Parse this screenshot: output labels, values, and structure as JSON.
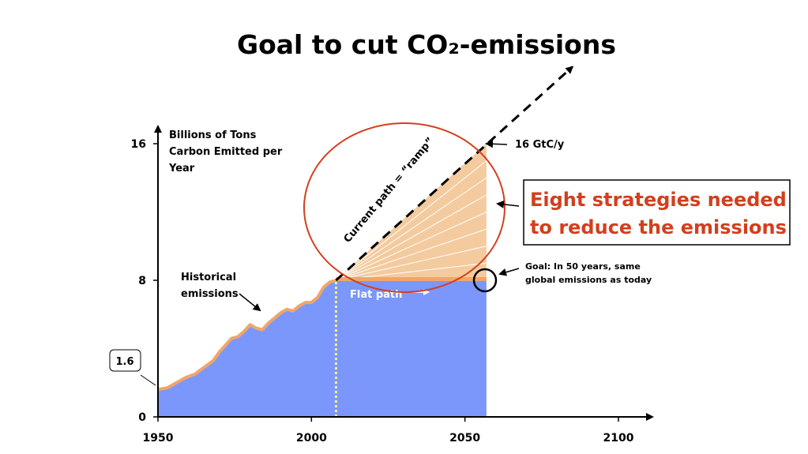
{
  "title": "Goal to cut CO₂-emissions",
  "chart_data": {
    "type": "area",
    "y_axis_label_lines": [
      "Billions of Tons",
      "Carbon Emitted per",
      "Year"
    ],
    "x_ticks": [
      "1950",
      "2000",
      "2050",
      "2100"
    ],
    "y_ticks": [
      "0",
      "8",
      "16"
    ],
    "xlim": [
      1950,
      2115
    ],
    "ylim": [
      0,
      18
    ],
    "historical": {
      "name": "Historical emissions",
      "label_lines": [
        "Historical",
        "emissions"
      ],
      "x": [
        1950,
        1953,
        1956,
        1959,
        1962,
        1965,
        1968,
        1970,
        1972,
        1974,
        1976,
        1978,
        1980,
        1982,
        1984,
        1986,
        1988,
        1990,
        1992,
        1994,
        1996,
        1998,
        2000,
        2002,
        2004,
        2006,
        2008
      ],
      "y": [
        1.6,
        1.7,
        2.0,
        2.3,
        2.5,
        2.9,
        3.3,
        3.8,
        4.2,
        4.6,
        4.7,
        5.0,
        5.4,
        5.2,
        5.1,
        5.5,
        5.8,
        6.1,
        6.3,
        6.2,
        6.5,
        6.7,
        6.7,
        7.0,
        7.6,
        7.9,
        8.0
      ]
    },
    "flat_path": {
      "label": "Flat path",
      "x": [
        2008,
        2057
      ],
      "y": 8
    },
    "ramp": {
      "label": "Current path = “ramp”",
      "x": [
        2008,
        2057
      ],
      "y": [
        8,
        16
      ],
      "extend_to": [
        2085,
        20.5
      ]
    },
    "annotations": {
      "start_value": "1.6",
      "end_value": "16 GtC/y",
      "goal_lines": [
        "Goal: In 50 years, same",
        "global emissions as today"
      ],
      "strategies_lines": [
        "Eight strategies needed",
        "to reduce the emissions"
      ]
    },
    "wedges": 8
  }
}
